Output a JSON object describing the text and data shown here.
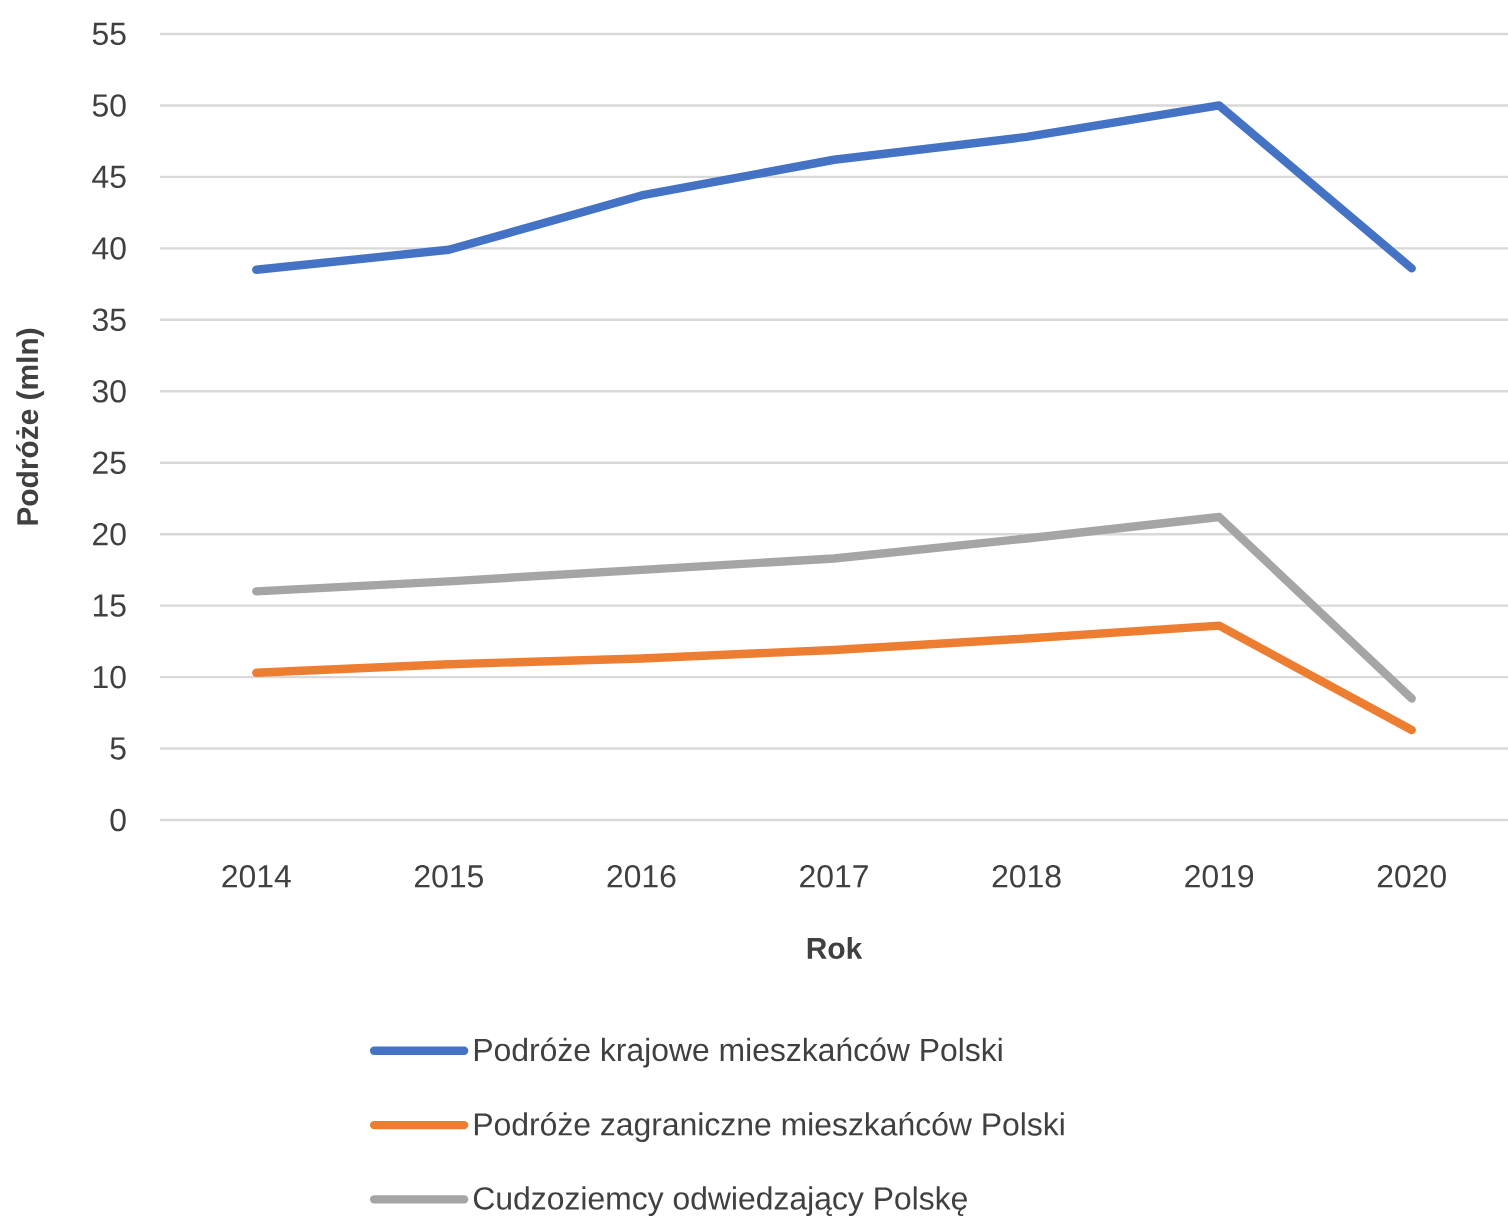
{
  "chart_data": {
    "type": "line",
    "xlabel": "Rok",
    "ylabel": "Podróże (mln)",
    "categories": [
      "2014",
      "2015",
      "2016",
      "2017",
      "2018",
      "2019",
      "2020"
    ],
    "series": [
      {
        "name": "Podróże krajowe mieszkańców Polski",
        "color": "#4472c4",
        "values": [
          38.5,
          39.9,
          43.7,
          46.2,
          47.8,
          50.0,
          38.6
        ]
      },
      {
        "name": "Podróże zagraniczne mieszkańców Polski",
        "color": "#ed7d31",
        "values": [
          10.3,
          10.9,
          11.3,
          11.9,
          12.7,
          13.6,
          6.3
        ]
      },
      {
        "name": "Cudzoziemcy odwiedzający Polskę",
        "color": "#a5a5a5",
        "values": [
          16.0,
          16.7,
          17.5,
          18.3,
          19.7,
          21.2,
          8.5
        ]
      }
    ],
    "ylim": [
      0,
      55
    ],
    "yticks": [
      0,
      5,
      10,
      15,
      20,
      25,
      30,
      35,
      40,
      45,
      50,
      55
    ],
    "grid": "y",
    "legend": "bottom",
    "marker": "none",
    "line_style": "solid"
  }
}
